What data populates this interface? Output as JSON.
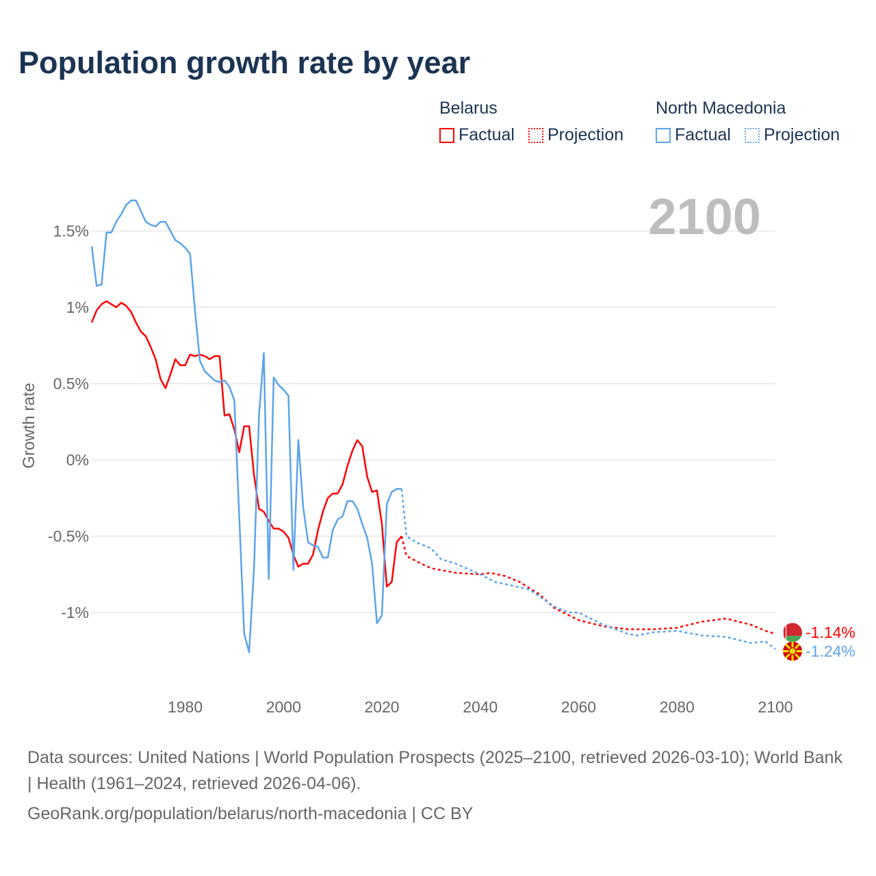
{
  "title": "Population growth rate by year",
  "legend": {
    "groups": [
      {
        "name": "Belarus",
        "color": "#ff0000",
        "items": [
          "Factual",
          "Projection"
        ]
      },
      {
        "name": "North Macedonia",
        "color": "#5ba4ea",
        "items": [
          "Factual",
          "Projection"
        ]
      }
    ]
  },
  "current_year_label": "2100",
  "footer": {
    "sources": "Data sources: United Nations | World Population Prospects (2025–2100, retrieved 2026-03-10); World Bank | Health (1961–2024, retrieved 2026-04-06).",
    "credit": "GeoRank.org/population/belarus/north-macedonia | CC BY"
  },
  "chart_data": {
    "type": "line",
    "title": "Population growth rate by year",
    "xlabel": "",
    "ylabel": "Growth rate",
    "xlim": [
      1961,
      2100
    ],
    "ylim": [
      -1.45,
      1.85
    ],
    "x_ticks": [
      1980,
      2000,
      2020,
      2040,
      2060,
      2080,
      2100
    ],
    "y_ticks": [
      1.5,
      1,
      0.5,
      0,
      -0.5,
      -1
    ],
    "y_tick_labels": [
      "1.5%",
      "1%",
      "0.5%",
      "0%",
      "-0.5%",
      "-1%"
    ],
    "grid": true,
    "series": [
      {
        "name": "Belarus",
        "kind": "Factual",
        "color": "#ff0000",
        "style": "solid",
        "x_start": 1961,
        "values": [
          0.9,
          0.98,
          1.02,
          1.04,
          1.02,
          1.0,
          1.03,
          1.01,
          0.97,
          0.9,
          0.84,
          0.81,
          0.74,
          0.66,
          0.53,
          0.47,
          0.56,
          0.66,
          0.62,
          0.62,
          0.69,
          0.68,
          0.69,
          0.68,
          0.66,
          0.68,
          0.68,
          0.29,
          0.3,
          0.2,
          0.05,
          0.22,
          0.22,
          -0.1,
          -0.32,
          -0.34,
          -0.4,
          -0.45,
          -0.45,
          -0.47,
          -0.51,
          -0.62,
          -0.7,
          -0.68,
          -0.68,
          -0.62,
          -0.46,
          -0.34,
          -0.25,
          -0.22,
          -0.22,
          -0.16,
          -0.04,
          0.06,
          0.13,
          0.09,
          -0.11,
          -0.21,
          -0.2,
          -0.42,
          -0.83,
          -0.8,
          -0.54,
          -0.5
        ]
      },
      {
        "name": "Belarus",
        "kind": "Projection",
        "color": "#ff0000",
        "style": "dotted",
        "x": [
          2024,
          2025,
          2028,
          2030,
          2035,
          2040,
          2042,
          2045,
          2048,
          2050,
          2052,
          2055,
          2060,
          2065,
          2070,
          2075,
          2080,
          2085,
          2090,
          2095,
          2098,
          2100
        ],
        "values": [
          -0.5,
          -0.63,
          -0.68,
          -0.71,
          -0.74,
          -0.75,
          -0.74,
          -0.76,
          -0.8,
          -0.84,
          -0.88,
          -0.97,
          -1.05,
          -1.09,
          -1.11,
          -1.11,
          -1.1,
          -1.06,
          -1.04,
          -1.08,
          -1.12,
          -1.14
        ]
      },
      {
        "name": "North Macedonia",
        "kind": "Factual",
        "color": "#5ba4ea",
        "style": "solid",
        "x_start": 1961,
        "values": [
          1.4,
          1.14,
          1.15,
          1.49,
          1.49,
          1.56,
          1.61,
          1.67,
          1.7,
          1.7,
          1.63,
          1.56,
          1.54,
          1.53,
          1.56,
          1.56,
          1.5,
          1.44,
          1.42,
          1.39,
          1.35,
          0.98,
          0.65,
          0.58,
          0.55,
          0.52,
          0.51,
          0.52,
          0.48,
          0.39,
          -0.37,
          -1.14,
          -1.26,
          -0.71,
          0.29,
          0.7,
          -0.78,
          0.54,
          0.49,
          0.46,
          0.42,
          -0.72,
          0.13,
          -0.31,
          -0.54,
          -0.56,
          -0.57,
          -0.64,
          -0.64,
          -0.46,
          -0.39,
          -0.37,
          -0.27,
          -0.27,
          -0.32,
          -0.42,
          -0.51,
          -0.68,
          -1.07,
          -1.02,
          -0.29,
          -0.21,
          -0.19,
          -0.19
        ]
      },
      {
        "name": "North Macedonia",
        "kind": "Projection",
        "color": "#5ba4ea",
        "style": "dotted",
        "x": [
          2024,
          2025,
          2027,
          2030,
          2032,
          2035,
          2040,
          2043,
          2046,
          2050,
          2055,
          2058,
          2060,
          2065,
          2070,
          2072,
          2075,
          2080,
          2085,
          2090,
          2095,
          2098,
          2100
        ],
        "values": [
          -0.19,
          -0.5,
          -0.54,
          -0.58,
          -0.65,
          -0.68,
          -0.75,
          -0.8,
          -0.82,
          -0.85,
          -0.96,
          -1.0,
          -1.0,
          -1.08,
          -1.14,
          -1.15,
          -1.13,
          -1.12,
          -1.15,
          -1.16,
          -1.2,
          -1.19,
          -1.24
        ]
      }
    ],
    "end_labels": [
      {
        "country": "Belarus",
        "value": -1.14,
        "text": "-1.14%",
        "color": "#ff0000"
      },
      {
        "country": "North Macedonia",
        "value": -1.24,
        "text": "-1.24%",
        "color": "#5ba4ea"
      }
    ]
  }
}
